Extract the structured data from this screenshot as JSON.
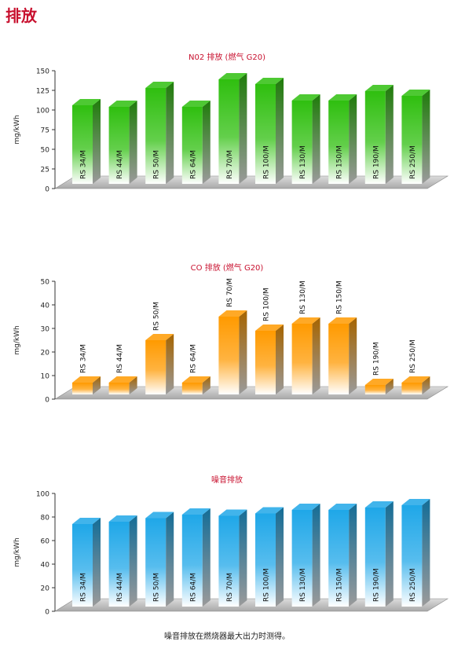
{
  "page": {
    "title": "排放",
    "footnote": "噪音排放在燃烧器最大出力时测得。"
  },
  "chart_data": [
    {
      "type": "bar",
      "title": "N02 排放 (燃气 G20)",
      "ylabel": "mg/kWh",
      "ylim": [
        0,
        150
      ],
      "yticks": [
        0,
        25,
        50,
        75,
        100,
        125,
        150
      ],
      "categories": [
        "RS 34/M",
        "RS 44/M",
        "RS 50/M",
        "RS 64/M",
        "RS 70/M",
        "RS 100/M",
        "RS 130/M",
        "RS 150/M",
        "RS 190/M",
        "RS 250/M"
      ],
      "values": [
        100,
        98,
        122,
        98,
        133,
        127,
        106,
        106,
        118,
        112
      ],
      "color": "#2fbf0f",
      "label_position": "inside"
    },
    {
      "type": "bar",
      "title": "CO 排放 (燃气 G20)",
      "ylabel": "mg/kWh",
      "ylim": [
        0,
        50
      ],
      "yticks": [
        0,
        10,
        20,
        30,
        40,
        50
      ],
      "categories": [
        "RS 34/M",
        "RS 44/M",
        "RS 50/M",
        "RS 64/M",
        "RS 70/M",
        "RS 100/M",
        "RS 130/M",
        "RS 150/M",
        "RS 190/M",
        "RS 250/M"
      ],
      "values": [
        5,
        5,
        23,
        5,
        33,
        27,
        30,
        30,
        4,
        5
      ],
      "color": "#ff9a00",
      "label_position": "above"
    },
    {
      "type": "bar",
      "title": "噪音排放",
      "ylabel": "mg/kWh",
      "ylim": [
        0,
        100
      ],
      "yticks": [
        0,
        20,
        40,
        60,
        80,
        100
      ],
      "categories": [
        "RS 34/M",
        "RS 44/M",
        "RS 50/M",
        "RS 64/M",
        "RS 70/M",
        "RS 100/M",
        "RS 130/M",
        "RS 150/M",
        "RS 190/M",
        "RS 250/M"
      ],
      "values": [
        70,
        72,
        75,
        78,
        77,
        79,
        82,
        82,
        84,
        86
      ],
      "color": "#1fa7e8",
      "label_position": "inside"
    }
  ]
}
